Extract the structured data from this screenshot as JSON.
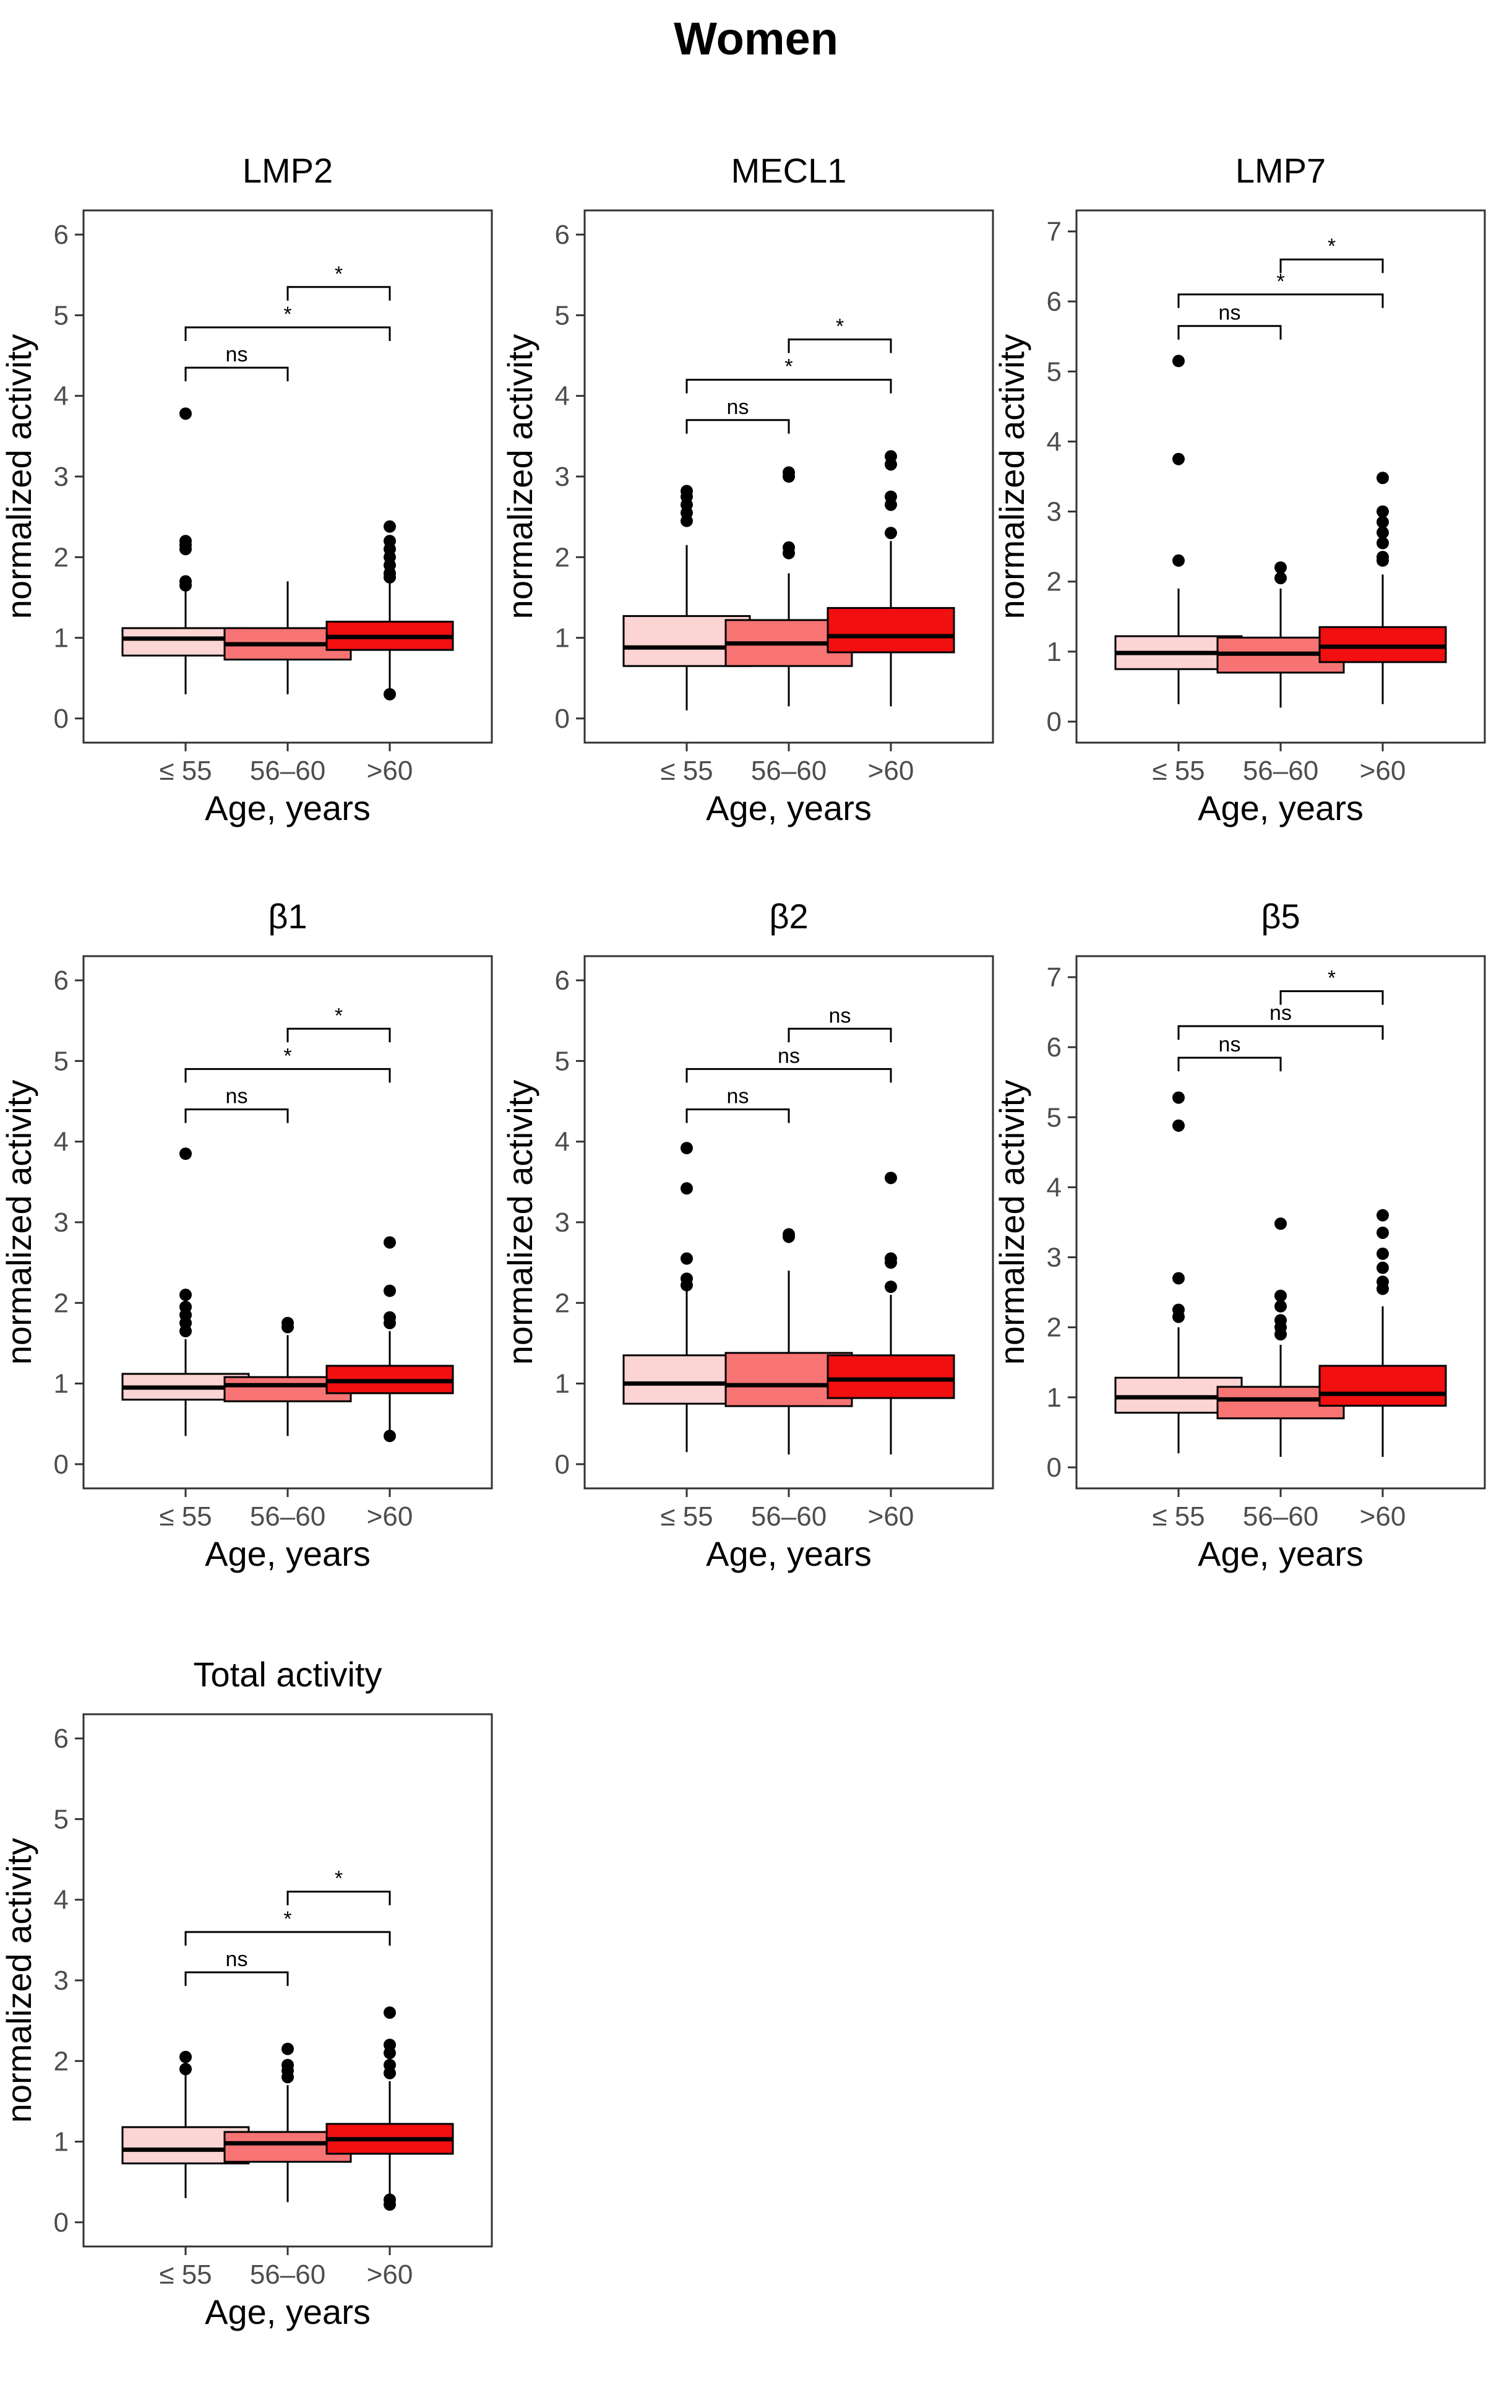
{
  "figure_title": "Women",
  "colors": {
    "le55": "#fdd4d4",
    "56to60": "#f87474",
    "gt60": "#f20f0f",
    "panel_border": "#333333",
    "tick_text": "#4d4d4d"
  },
  "chart_data": [
    {
      "type": "boxplot",
      "title": "LMP2",
      "xlabel": "Age, years",
      "ylabel": "normalized activity",
      "categories": [
        "≤ 55",
        "56–60",
        ">60"
      ],
      "ylim": [
        -0.3,
        6.3
      ],
      "yticks": [
        0,
        1,
        2,
        3,
        4,
        5,
        6
      ],
      "boxes": [
        {
          "q1": 0.78,
          "median": 0.99,
          "q3": 1.12,
          "whisker_low": 0.3,
          "whisker_high": 1.6,
          "outliers": [
            1.65,
            1.7,
            2.1,
            2.15,
            2.2,
            3.78
          ]
        },
        {
          "q1": 0.73,
          "median": 0.92,
          "q3": 1.12,
          "whisker_low": 0.3,
          "whisker_high": 1.7,
          "outliers": []
        },
        {
          "q1": 0.85,
          "median": 1.01,
          "q3": 1.2,
          "whisker_low": 0.3,
          "whisker_high": 1.7,
          "outliers": [
            1.75,
            1.8,
            1.9,
            2.0,
            2.1,
            2.2,
            2.38,
            0.3
          ]
        }
      ],
      "comparisons": [
        {
          "from": 0,
          "to": 1,
          "y": 4.35,
          "label": "ns"
        },
        {
          "from": 0,
          "to": 2,
          "y": 4.85,
          "label": "*"
        },
        {
          "from": 1,
          "to": 2,
          "y": 5.35,
          "label": "*"
        }
      ]
    },
    {
      "type": "boxplot",
      "title": "MECL1",
      "xlabel": "Age, years",
      "ylabel": "normalized activity",
      "categories": [
        "≤ 55",
        "56–60",
        ">60"
      ],
      "ylim": [
        -0.3,
        6.3
      ],
      "yticks": [
        0,
        1,
        2,
        3,
        4,
        5,
        6
      ],
      "boxes": [
        {
          "q1": 0.65,
          "median": 0.88,
          "q3": 1.27,
          "whisker_low": 0.1,
          "whisker_high": 2.15,
          "outliers": [
            2.45,
            2.55,
            2.65,
            2.75,
            2.82
          ]
        },
        {
          "q1": 0.65,
          "median": 0.93,
          "q3": 1.22,
          "whisker_low": 0.15,
          "whisker_high": 1.8,
          "outliers": [
            2.05,
            2.12,
            3.0,
            3.05
          ]
        },
        {
          "q1": 0.82,
          "median": 1.02,
          "q3": 1.37,
          "whisker_low": 0.15,
          "whisker_high": 2.2,
          "outliers": [
            2.3,
            2.65,
            2.75,
            3.15,
            3.25
          ]
        }
      ],
      "comparisons": [
        {
          "from": 0,
          "to": 1,
          "y": 3.7,
          "label": "ns"
        },
        {
          "from": 0,
          "to": 2,
          "y": 4.2,
          "label": "*"
        },
        {
          "from": 1,
          "to": 2,
          "y": 4.7,
          "label": "*"
        }
      ]
    },
    {
      "type": "boxplot",
      "title": "LMP7",
      "xlabel": "Age, years",
      "ylabel": "normalized activity",
      "categories": [
        "≤ 55",
        "56–60",
        ">60"
      ],
      "ylim": [
        -0.3,
        7.3
      ],
      "yticks": [
        0,
        1,
        2,
        3,
        4,
        5,
        6,
        7
      ],
      "boxes": [
        {
          "q1": 0.75,
          "median": 0.98,
          "q3": 1.22,
          "whisker_low": 0.25,
          "whisker_high": 1.9,
          "outliers": [
            2.3,
            3.75,
            5.15
          ]
        },
        {
          "q1": 0.7,
          "median": 0.97,
          "q3": 1.2,
          "whisker_low": 0.2,
          "whisker_high": 1.9,
          "outliers": [
            2.05,
            2.2
          ]
        },
        {
          "q1": 0.85,
          "median": 1.07,
          "q3": 1.35,
          "whisker_low": 0.25,
          "whisker_high": 2.1,
          "outliers": [
            2.3,
            2.35,
            2.55,
            2.7,
            2.85,
            3.0,
            3.48
          ]
        }
      ],
      "comparisons": [
        {
          "from": 0,
          "to": 1,
          "y": 5.65,
          "label": "ns"
        },
        {
          "from": 0,
          "to": 2,
          "y": 6.1,
          "label": "*"
        },
        {
          "from": 1,
          "to": 2,
          "y": 6.6,
          "label": "*"
        }
      ]
    },
    {
      "type": "boxplot",
      "title": "β1",
      "xlabel": "Age, years",
      "ylabel": "normalized activity",
      "categories": [
        "≤ 55",
        "56–60",
        ">60"
      ],
      "ylim": [
        -0.3,
        6.3
      ],
      "yticks": [
        0,
        1,
        2,
        3,
        4,
        5,
        6
      ],
      "boxes": [
        {
          "q1": 0.8,
          "median": 0.95,
          "q3": 1.12,
          "whisker_low": 0.35,
          "whisker_high": 1.55,
          "outliers": [
            1.65,
            1.75,
            1.85,
            1.95,
            2.1,
            3.85
          ]
        },
        {
          "q1": 0.78,
          "median": 0.98,
          "q3": 1.08,
          "whisker_low": 0.35,
          "whisker_high": 1.6,
          "outliers": [
            1.7,
            1.75
          ]
        },
        {
          "q1": 0.88,
          "median": 1.03,
          "q3": 1.22,
          "whisker_low": 0.35,
          "whisker_high": 1.65,
          "outliers": [
            1.75,
            1.82,
            2.15,
            2.75,
            0.35
          ]
        }
      ],
      "comparisons": [
        {
          "from": 0,
          "to": 1,
          "y": 4.4,
          "label": "ns"
        },
        {
          "from": 0,
          "to": 2,
          "y": 4.9,
          "label": "*"
        },
        {
          "from": 1,
          "to": 2,
          "y": 5.4,
          "label": "*"
        }
      ]
    },
    {
      "type": "boxplot",
      "title": "β2",
      "xlabel": "Age, years",
      "ylabel": "normalized activity",
      "categories": [
        "≤ 55",
        "56–60",
        ">60"
      ],
      "ylim": [
        -0.3,
        6.3
      ],
      "yticks": [
        0,
        1,
        2,
        3,
        4,
        5,
        6
      ],
      "boxes": [
        {
          "q1": 0.75,
          "median": 1.0,
          "q3": 1.35,
          "whisker_low": 0.15,
          "whisker_high": 2.15,
          "outliers": [
            2.22,
            2.3,
            2.55,
            3.42,
            3.92
          ]
        },
        {
          "q1": 0.72,
          "median": 0.98,
          "q3": 1.38,
          "whisker_low": 0.12,
          "whisker_high": 2.4,
          "outliers": [
            2.82,
            2.85
          ]
        },
        {
          "q1": 0.82,
          "median": 1.05,
          "q3": 1.35,
          "whisker_low": 0.12,
          "whisker_high": 2.1,
          "outliers": [
            2.2,
            2.5,
            2.55,
            3.55
          ]
        }
      ],
      "comparisons": [
        {
          "from": 0,
          "to": 1,
          "y": 4.4,
          "label": "ns"
        },
        {
          "from": 0,
          "to": 2,
          "y": 4.9,
          "label": "ns"
        },
        {
          "from": 1,
          "to": 2,
          "y": 5.4,
          "label": "ns"
        }
      ]
    },
    {
      "type": "boxplot",
      "title": "β5",
      "xlabel": "Age, years",
      "ylabel": "normalized activity",
      "categories": [
        "≤ 55",
        "56–60",
        ">60"
      ],
      "ylim": [
        -0.3,
        7.3
      ],
      "yticks": [
        0,
        1,
        2,
        3,
        4,
        5,
        6,
        7
      ],
      "boxes": [
        {
          "q1": 0.78,
          "median": 1.0,
          "q3": 1.28,
          "whisker_low": 0.2,
          "whisker_high": 2.0,
          "outliers": [
            2.15,
            2.25,
            2.7,
            4.88,
            5.28
          ]
        },
        {
          "q1": 0.7,
          "median": 0.97,
          "q3": 1.15,
          "whisker_low": 0.15,
          "whisker_high": 1.75,
          "outliers": [
            1.9,
            2.0,
            2.1,
            2.3,
            2.45,
            3.48
          ]
        },
        {
          "q1": 0.88,
          "median": 1.05,
          "q3": 1.45,
          "whisker_low": 0.15,
          "whisker_high": 2.3,
          "outliers": [
            2.55,
            2.65,
            2.85,
            3.05,
            3.35,
            3.6
          ]
        }
      ],
      "comparisons": [
        {
          "from": 0,
          "to": 1,
          "y": 5.85,
          "label": "ns"
        },
        {
          "from": 0,
          "to": 2,
          "y": 6.3,
          "label": "ns"
        },
        {
          "from": 1,
          "to": 2,
          "y": 6.8,
          "label": "*"
        }
      ]
    },
    {
      "type": "boxplot",
      "title": "Total activity",
      "xlabel": "Age, years",
      "ylabel": "normalized activity",
      "categories": [
        "≤ 55",
        "56–60",
        ">60"
      ],
      "ylim": [
        -0.3,
        6.3
      ],
      "yticks": [
        0,
        1,
        2,
        3,
        4,
        5,
        6
      ],
      "boxes": [
        {
          "q1": 0.73,
          "median": 0.9,
          "q3": 1.18,
          "whisker_low": 0.3,
          "whisker_high": 1.85,
          "outliers": [
            1.9,
            2.05
          ]
        },
        {
          "q1": 0.75,
          "median": 0.98,
          "q3": 1.12,
          "whisker_low": 0.25,
          "whisker_high": 1.7,
          "outliers": [
            1.8,
            1.88,
            1.95,
            2.15
          ]
        },
        {
          "q1": 0.85,
          "median": 1.03,
          "q3": 1.22,
          "whisker_low": 0.3,
          "whisker_high": 1.75,
          "outliers": [
            1.85,
            1.95,
            2.1,
            2.2,
            2.6,
            0.22,
            0.28
          ]
        }
      ],
      "comparisons": [
        {
          "from": 0,
          "to": 1,
          "y": 3.1,
          "label": "ns"
        },
        {
          "from": 0,
          "to": 2,
          "y": 3.6,
          "label": "*"
        },
        {
          "from": 1,
          "to": 2,
          "y": 4.1,
          "label": "*"
        }
      ]
    }
  ]
}
